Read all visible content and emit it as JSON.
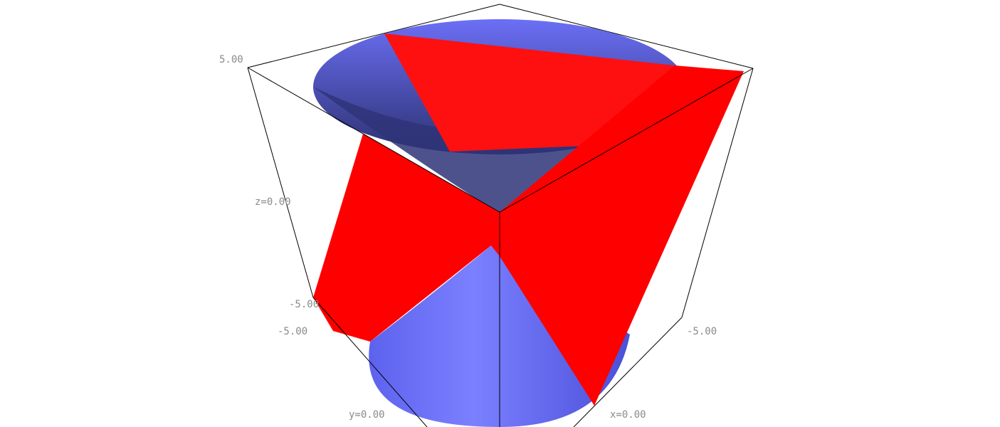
{
  "plot": {
    "type": "3d-surface",
    "surfaces": [
      {
        "shape": "double cone",
        "color": "#6b6ff5"
      },
      {
        "shape": "plane",
        "color": "#ff0000"
      }
    ]
  },
  "axes": {
    "z_top_label": "5.00",
    "z_mid_label": "z=0.00",
    "z_bottom_label": "-5.00",
    "y_min_label": "-5.00",
    "y_mid_label": "y=0.00",
    "x_min_label": "-5.00",
    "x_mid_label": "x=0.00"
  },
  "colors": {
    "cone": "#6b6ff5",
    "cone_dark": "#2f3478",
    "plane": "#ff0000",
    "box": "#000000",
    "label": "#8a8a8a"
  }
}
